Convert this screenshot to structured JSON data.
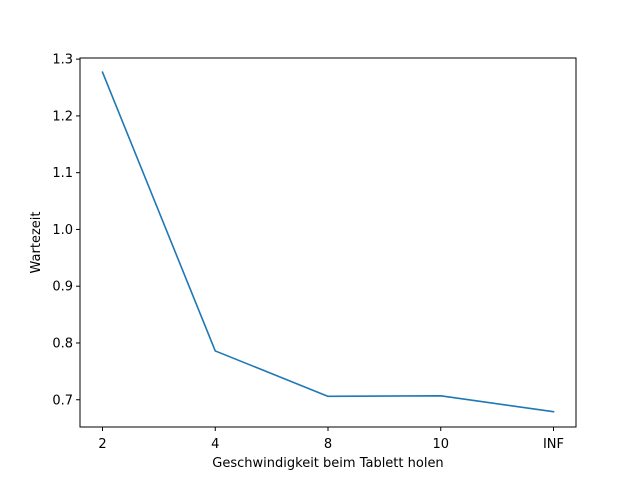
{
  "chart_data": {
    "type": "line",
    "title": "",
    "xlabel": "Geschwindigkeit beim Tablett holen",
    "ylabel": "Wartezeit",
    "categories": [
      "2",
      "4",
      "8",
      "10",
      "INF"
    ],
    "series": [
      {
        "values": [
          1.277,
          0.786,
          0.706,
          0.707,
          0.679
        ],
        "color": "#1f77b4"
      }
    ],
    "ylim": [
      0.652,
      1.302
    ],
    "yticks": [
      0.7,
      0.8,
      0.9,
      1.0,
      1.1,
      1.2,
      1.3
    ],
    "ytick_labels": [
      "0.7",
      "0.8",
      "0.9",
      "1.0",
      "1.1",
      "1.2",
      "1.3"
    ],
    "grid": false,
    "legend": "none"
  }
}
